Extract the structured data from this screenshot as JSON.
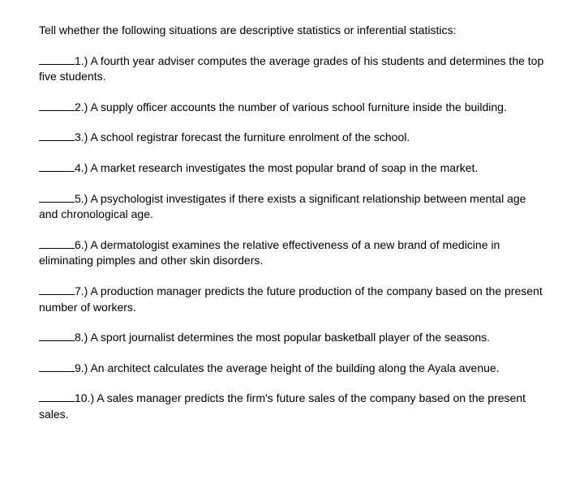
{
  "instruction": "Tell whether the following situations are descriptive statistics or inferential statistics:",
  "questions": [
    {
      "num": "1.)",
      "text": "A fourth year adviser computes the average grades of his students and determines the top five students."
    },
    {
      "num": "2.)",
      "text": "A supply officer accounts the number of various school furniture inside the building."
    },
    {
      "num": "3.)",
      "text": "A school registrar forecast the furniture enrolment of the school."
    },
    {
      "num": "4.)",
      "text": "A market research investigates the most popular brand of soap in the market."
    },
    {
      "num": "5.)",
      "text": "A psychologist investigates if there exists a significant relationship between mental age and chronological age."
    },
    {
      "num": "6.)",
      "text": "A dermatologist examines the relative effectiveness of a new brand of medicine in eliminating pimples and other skin disorders."
    },
    {
      "num": "7.)",
      "text": "A production manager predicts the future production of the company based on the present number of workers."
    },
    {
      "num": "8.)",
      "text": "A sport journalist determines the most popular basketball player of the seasons."
    },
    {
      "num": "9.)",
      "text": "An architect calculates the average height of the building along the Ayala avenue."
    },
    {
      "num": "10.)",
      "text": "A sales manager predicts the firm's future sales of the company based on the present sales."
    }
  ],
  "style": {
    "background": "#ffffff",
    "text_color": "#000000",
    "font_size": 14,
    "blank_width": 44
  }
}
